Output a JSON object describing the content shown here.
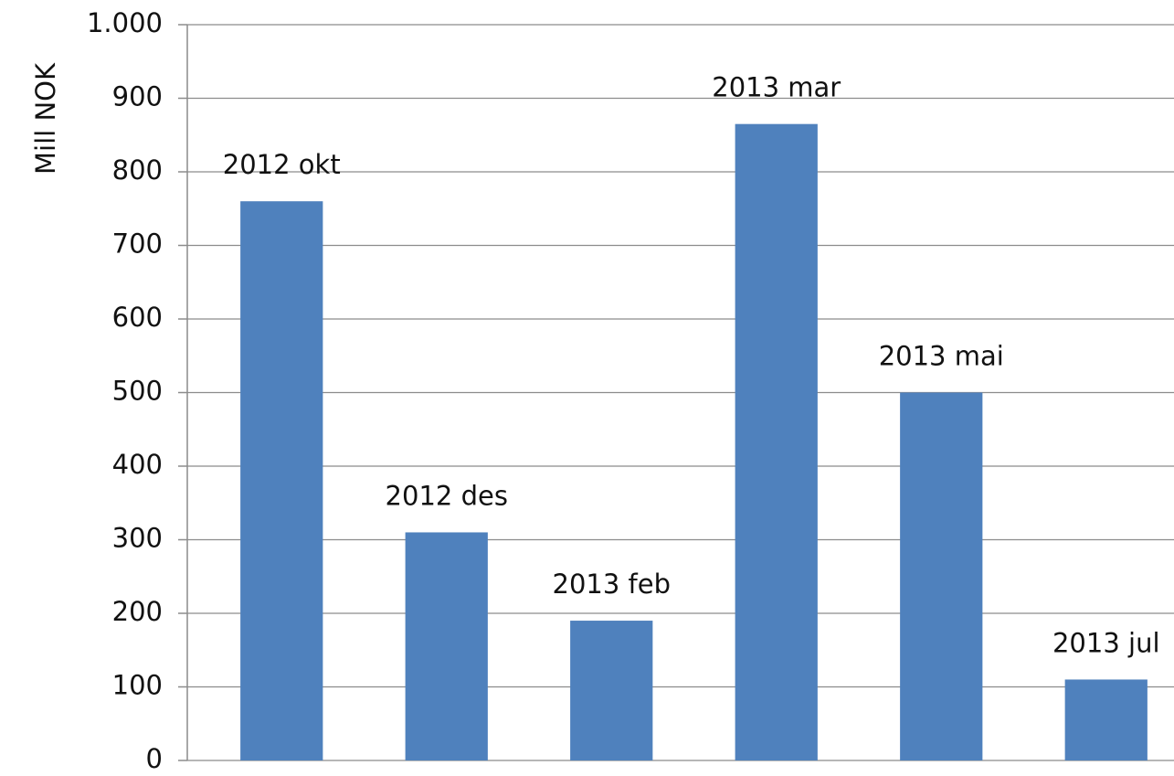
{
  "chart_data": {
    "type": "bar",
    "y_label": "Mill NOK",
    "categories": [
      "2012 okt",
      "2012 des",
      "2013 feb",
      "2013 mar",
      "2013 mai",
      "2013 jul"
    ],
    "values": [
      760,
      310,
      190,
      865,
      500,
      110
    ],
    "color": "#4f81bd",
    "ylim": [
      0,
      1000
    ],
    "yticks": [
      0,
      100,
      200,
      300,
      400,
      500,
      600,
      700,
      800,
      900,
      {
        "value": 1000,
        "label": "1.000"
      }
    ],
    "grid": true
  }
}
